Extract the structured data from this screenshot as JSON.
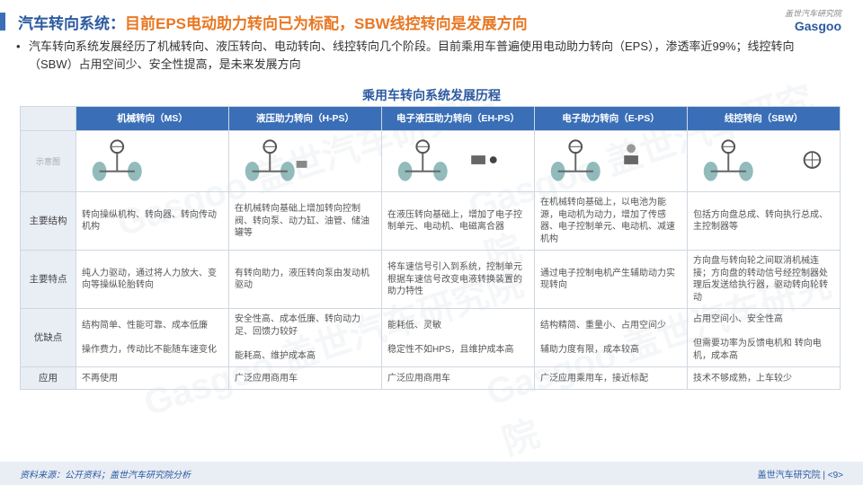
{
  "title": {
    "part1": "汽车转向系统：",
    "part2": "目前EPS电动助力转向已为标配，SBW线控转向是发展方向"
  },
  "logo": {
    "sub": "盖世汽车研究院",
    "brand": "Gasgoo"
  },
  "bullet": "汽车转向系统发展经历了机械转向、液压转向、电动转向、线控转向几个阶段。目前乘用车普遍使用电动助力转向（EPS），渗透率近99%；线控转向（SBW）占用空间少、安全性提高，是未来发展方向",
  "table_title": "乘用车转向系统发展历程",
  "colors": {
    "accent": "#3a6fb7",
    "title1": "#2c5aa0",
    "title2": "#e87722",
    "header_bg": "#3a6fb7",
    "rowhead_bg": "#e9edf4",
    "border": "#d0d7e2",
    "footer_bg": "#e9edf4",
    "text": "#555"
  },
  "columns": [
    {
      "key": "ms",
      "label": "机械转向（MS）"
    },
    {
      "key": "hps",
      "label": "液压助力转向（H-PS）"
    },
    {
      "key": "ehps",
      "label": "电子液压助力转向（EH-PS）"
    },
    {
      "key": "eps",
      "label": "电子助力转向（E-PS）"
    },
    {
      "key": "sbw",
      "label": "线控转向（SBW）"
    }
  ],
  "rows": [
    {
      "label": "示意图",
      "type": "diagram"
    },
    {
      "label": "主要结构",
      "cells": [
        "转向操纵机构、转向器、转向传动机构",
        "在机械转向基础上增加转向控制阀、转向泵、动力缸、油管、储油罐等",
        "在液压转向基础上，增加了电子控制单元、电动机、电磁离合器",
        "在机械转向基础上，以电池为能源，电动机为动力，增加了传感器、电子控制单元、电动机、减速机构",
        "包括方向盘总成、转向执行总成、主控制器等"
      ]
    },
    {
      "label": "主要特点",
      "cells": [
        "纯人力驱动，通过将人力放大、变向等操纵轮胎转向",
        "有转向助力，液压转向泵由发动机驱动",
        "将车速信号引入到系统，控制单元根据车速信号改变电液转换装置的助力特性",
        "通过电子控制电机产生辅助动力实现转向",
        "方向盘与转向轮之间取消机械连接；方向盘的转动信号经控制器处理后发送给执行器，驱动转向轮转动"
      ]
    },
    {
      "label": "优缺点",
      "cells": [
        "结构简单、性能可靠、成本低廉\n\n操作费力，传动比不能随车速变化",
        "安全性高、成本低廉、转向动力足、回馈力较好\n\n能耗高、维护成本高",
        "能耗低、灵敏\n\n稳定性不如HPS，且维护成本高",
        "结构精简、重量小、占用空间少\n\n辅助力度有限，成本较高",
        "占用空间小、安全性高\n\n但需要功率为反馈电机和 转向电机，成本高"
      ]
    },
    {
      "label": "应用",
      "cells": [
        "不再使用",
        "广泛应用商用车",
        "广泛应用商用车",
        "广泛应用乘用车，接近标配",
        "技术不够成熟，上车较少"
      ]
    }
  ],
  "footer": {
    "source": "资料来源：公开资料；盖世汽车研究院分析",
    "page": "盖世汽车研究院 | <9>"
  },
  "watermark": "Gasgoo 盖世汽车研究院"
}
